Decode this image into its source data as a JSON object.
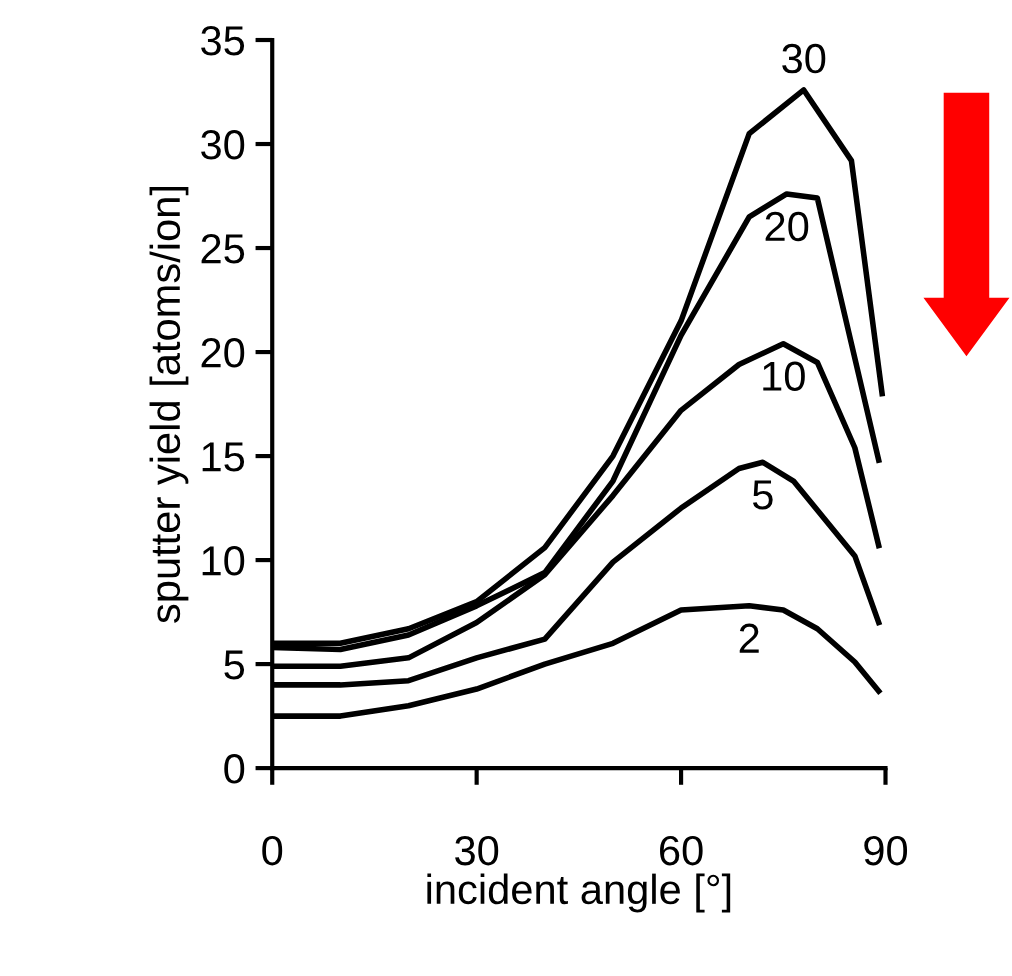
{
  "chart_data": {
    "type": "line",
    "xlabel": "incident angle [°]",
    "ylabel": "sputter yield [atoms/ion]",
    "xlim": [
      0,
      90
    ],
    "xticks": [
      0,
      30,
      60,
      90
    ],
    "ylim": [
      0,
      35
    ],
    "yticks": [
      0,
      5,
      10,
      15,
      20,
      25,
      30,
      35
    ],
    "grid": false,
    "legend": false,
    "marker": "none",
    "line_style": "solid",
    "series": [
      {
        "name": "30",
        "color": "#000000",
        "x": [
          0,
          10,
          20,
          30,
          40,
          50,
          60,
          70,
          78,
          85,
          89.5
        ],
        "values": [
          6.0,
          6.0,
          6.7,
          8.0,
          10.6,
          15.0,
          21.5,
          30.5,
          32.6,
          29.2,
          18.0
        ]
      },
      {
        "name": "20",
        "color": "#000000",
        "x": [
          0,
          10,
          20,
          30,
          40,
          50,
          60,
          70,
          75.5,
          80,
          89
        ],
        "values": [
          5.8,
          5.7,
          6.4,
          7.8,
          9.4,
          13.8,
          20.8,
          26.5,
          27.6,
          27.4,
          14.8
        ]
      },
      {
        "name": "10",
        "color": "#000000",
        "x": [
          0,
          10,
          20,
          30,
          40,
          50,
          60,
          68.5,
          75,
          80,
          85.5,
          89
        ],
        "values": [
          4.9,
          4.9,
          5.3,
          7.0,
          9.3,
          13.1,
          17.2,
          19.4,
          20.4,
          19.5,
          15.4,
          10.7
        ]
      },
      {
        "name": "5",
        "color": "#000000",
        "x": [
          0,
          10,
          20,
          30,
          40,
          50,
          60,
          68.5,
          72,
          76.5,
          85.5,
          89
        ],
        "values": [
          4.0,
          4.0,
          4.2,
          5.3,
          6.2,
          9.9,
          12.5,
          14.4,
          14.7,
          13.8,
          10.2,
          7.0
        ]
      },
      {
        "name": "2",
        "color": "#000000",
        "x": [
          0,
          10,
          20,
          30,
          40,
          50,
          60,
          70,
          75,
          80,
          85.5,
          89
        ],
        "values": [
          2.5,
          2.5,
          3.0,
          3.8,
          5.0,
          6.0,
          7.6,
          7.8,
          7.6,
          6.7,
          5.1,
          3.7
        ]
      }
    ]
  }
}
